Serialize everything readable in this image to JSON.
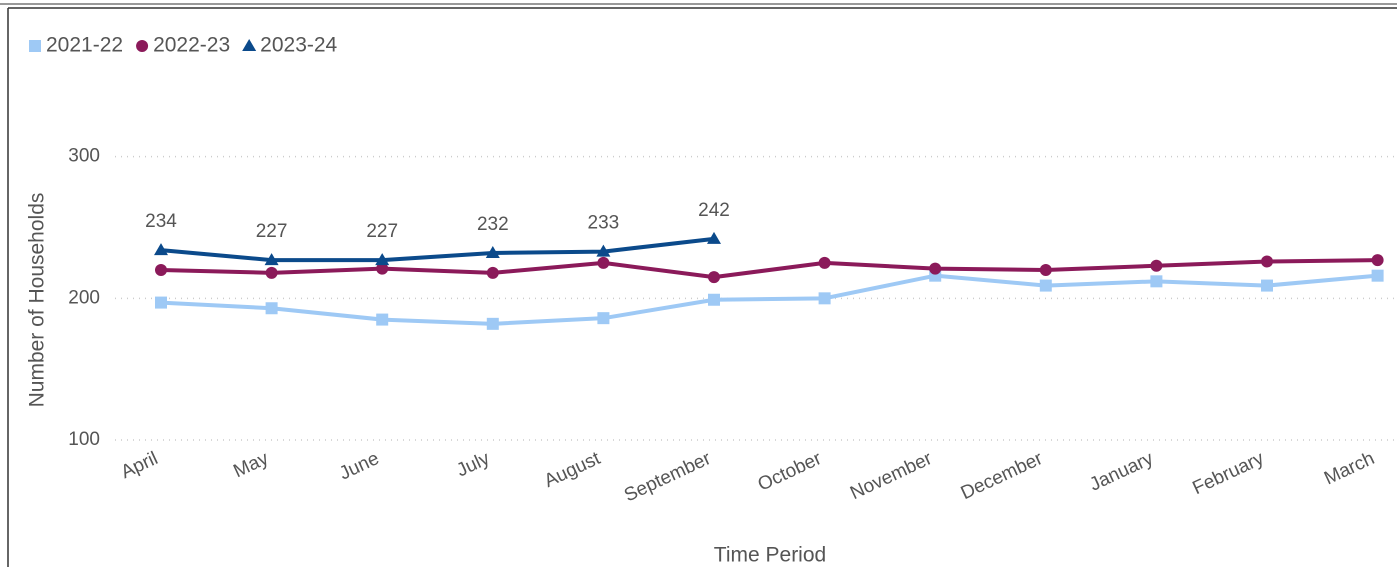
{
  "chart_data": {
    "type": "line",
    "y_label": "Number of Households",
    "x_label": "Time Period",
    "categories": [
      "April",
      "May",
      "June",
      "July",
      "August",
      "September",
      "October",
      "November",
      "December",
      "January",
      "February",
      "March"
    ],
    "series": [
      {
        "name": "2021-22",
        "color": "#9ec9f5",
        "marker": "square",
        "data_labels": false,
        "values": [
          197,
          193,
          185,
          182,
          186,
          199,
          200,
          216,
          209,
          212,
          209,
          216
        ]
      },
      {
        "name": "2022-23",
        "color": "#8b1a5a",
        "marker": "circle",
        "data_labels": false,
        "values": [
          220,
          218,
          221,
          218,
          225,
          215,
          225,
          221,
          220,
          223,
          226,
          227
        ]
      },
      {
        "name": "2023-24",
        "color": "#0b4a8b",
        "marker": "triangle",
        "data_labels": true,
        "values": [
          234,
          227,
          227,
          232,
          233,
          242,
          null,
          null,
          null,
          null,
          null,
          null
        ]
      }
    ],
    "ylim": [
      100,
      340
    ],
    "yticks": [
      100,
      200,
      300
    ],
    "grid": true,
    "legend": "top-left"
  }
}
